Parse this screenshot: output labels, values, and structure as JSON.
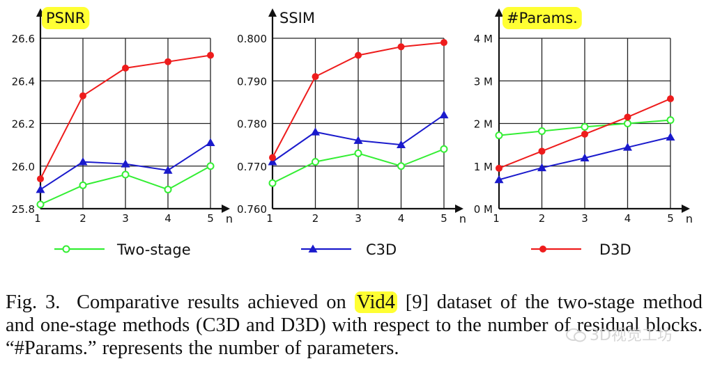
{
  "chart_data": [
    {
      "type": "line",
      "title": "PSNR",
      "title_highlight": true,
      "xlabel": "n",
      "x": [
        1,
        2,
        3,
        4,
        5
      ],
      "ylim": [
        25.8,
        26.6
      ],
      "yticks": [
        "25.8",
        "26.0",
        "26.2",
        "26.4",
        "26.6"
      ],
      "series": [
        {
          "name": "Two-stage",
          "values": [
            25.82,
            25.91,
            25.96,
            25.89,
            26.0
          ]
        },
        {
          "name": "C3D",
          "values": [
            25.89,
            26.02,
            26.01,
            25.98,
            26.11
          ]
        },
        {
          "name": "D3D",
          "values": [
            25.94,
            26.33,
            26.46,
            26.49,
            26.52
          ]
        }
      ]
    },
    {
      "type": "line",
      "title": "SSIM",
      "title_highlight": false,
      "xlabel": "n",
      "x": [
        1,
        2,
        3,
        4,
        5
      ],
      "ylim": [
        0.76,
        0.8
      ],
      "yticks": [
        "0.760",
        "0.770",
        "0.780",
        "0.790",
        "0.800"
      ],
      "series": [
        {
          "name": "Two-stage",
          "values": [
            0.766,
            0.771,
            0.773,
            0.77,
            0.774
          ]
        },
        {
          "name": "C3D",
          "values": [
            0.771,
            0.778,
            0.776,
            0.775,
            0.782
          ]
        },
        {
          "name": "D3D",
          "values": [
            0.772,
            0.791,
            0.796,
            0.798,
            0.799
          ]
        }
      ]
    },
    {
      "type": "line",
      "title": "#Params.",
      "title_highlight": true,
      "xlabel": "n",
      "x": [
        1,
        2,
        3,
        4,
        5
      ],
      "ylim": [
        0,
        4
      ],
      "yticks": [
        "0 M",
        "1 M",
        "2 M",
        "3 M",
        "4 M"
      ],
      "series": [
        {
          "name": "Two-stage",
          "values": [
            1.72,
            1.82,
            1.92,
            2.0,
            2.08
          ]
        },
        {
          "name": "C3D",
          "values": [
            0.68,
            0.96,
            1.19,
            1.44,
            1.68
          ]
        },
        {
          "name": "D3D",
          "values": [
            0.95,
            1.35,
            1.75,
            2.15,
            2.58
          ]
        }
      ]
    }
  ],
  "legend": [
    {
      "name": "Two-stage",
      "color": "#33ee33",
      "marker": "open-circle"
    },
    {
      "name": "C3D",
      "color": "#1a1acc",
      "marker": "triangle"
    },
    {
      "name": "D3D",
      "color": "#ee1c1c",
      "marker": "filled-circle"
    }
  ],
  "caption": {
    "label": "Fig. 3.",
    "text_before": "Comparative results achieved on",
    "highlight": "Vid4",
    "line1_rest": "[9] dataset of the two-stage",
    "line2": "method and one-stage methods (C3D and D3D) with respect to the number",
    "line3": "of residual blocks. “#Params.” represents the number of parameters."
  },
  "watermark": "3D视觉工坊",
  "colors": {
    "highlight": "#ffff33",
    "grid": "#222222"
  }
}
